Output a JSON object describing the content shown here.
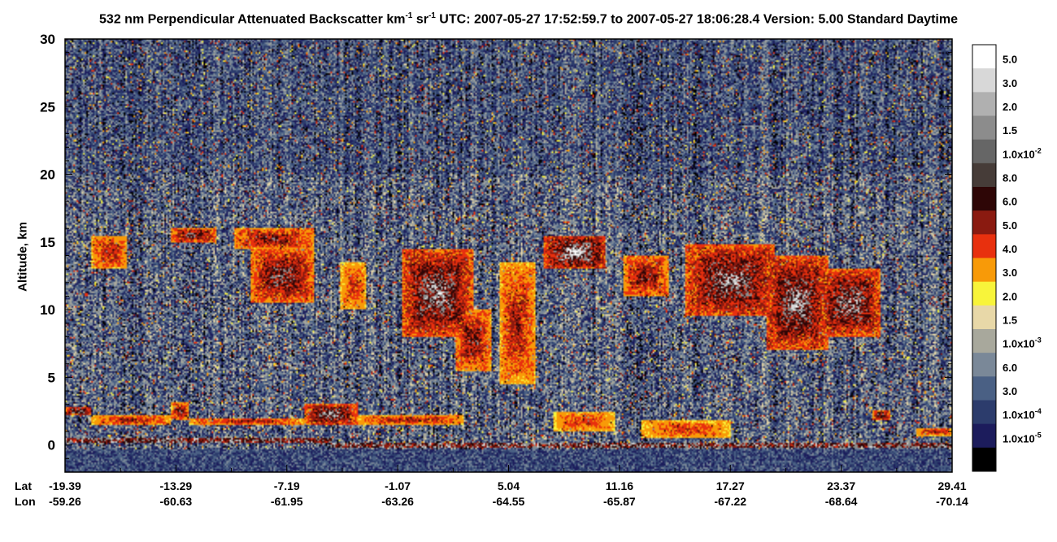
{
  "title": {
    "prefix": "532 nm Perpendicular Attenuated Backscatter km",
    "exp1": "-1",
    "mid": " sr",
    "exp2": "-1",
    "suffix": "  UTC: 2007-05-27 17:52:59.7 to 2007-05-27 18:06:28.4  Version: 5.00 Standard Daytime"
  },
  "chart_data": {
    "type": "heatmap",
    "ylabel": "Altitude, km",
    "ylim": [
      -2,
      30
    ],
    "yticks": [
      0,
      5,
      10,
      15,
      20,
      25,
      30
    ],
    "x_row_labels": [
      "Lat",
      "Lon"
    ],
    "xticks": [
      {
        "lat": "-19.39",
        "lon": "-59.26"
      },
      {
        "lat": "-13.29",
        "lon": "-60.63"
      },
      {
        "lat": "-7.19",
        "lon": "-61.95"
      },
      {
        "lat": "-1.07",
        "lon": "-63.26"
      },
      {
        "lat": "5.04",
        "lon": "-64.55"
      },
      {
        "lat": "11.16",
        "lon": "-65.87"
      },
      {
        "lat": "17.27",
        "lon": "-67.22"
      },
      {
        "lat": "23.37",
        "lon": "-68.64"
      },
      {
        "lat": "29.41",
        "lon": "-70.14"
      }
    ],
    "colorbar": [
      {
        "label": "5.0",
        "exp": "",
        "color": "#ffffff"
      },
      {
        "label": "3.0",
        "exp": "",
        "color": "#d8d8d8"
      },
      {
        "label": "2.0",
        "exp": "",
        "color": "#b0b0b0"
      },
      {
        "label": "1.5",
        "exp": "",
        "color": "#8c8c8c"
      },
      {
        "label": "1.0x10",
        "exp": "-2",
        "color": "#666666"
      },
      {
        "label": "8.0",
        "exp": "",
        "color": "#463c38"
      },
      {
        "label": "6.0",
        "exp": "",
        "color": "#2e0606"
      },
      {
        "label": "5.0",
        "exp": "",
        "color": "#8a1a10"
      },
      {
        "label": "4.0",
        "exp": "",
        "color": "#e8300e"
      },
      {
        "label": "3.0",
        "exp": "",
        "color": "#f89a08"
      },
      {
        "label": "2.0",
        "exp": "",
        "color": "#f8f43a"
      },
      {
        "label": "1.5",
        "exp": "",
        "color": "#e8d8a8"
      },
      {
        "label": "1.0x10",
        "exp": "-3",
        "color": "#a8a89c"
      },
      {
        "label": "6.0",
        "exp": "",
        "color": "#7a8898"
      },
      {
        "label": "3.0",
        "exp": "",
        "color": "#4a6084"
      },
      {
        "label": "1.0x10",
        "exp": "-4",
        "color": "#2c3c6c"
      },
      {
        "label": "1.0x10",
        "exp": "-5",
        "color": "#1c1c5c"
      },
      {
        "label": "",
        "exp": "",
        "color": "#000000"
      }
    ],
    "cloud_features": [
      {
        "x0": 0.03,
        "x1": 0.07,
        "alt_low": 13.0,
        "alt_high": 15.5,
        "intensity": 0.6
      },
      {
        "x0": 0.12,
        "x1": 0.17,
        "alt_low": 15.0,
        "alt_high": 16.0,
        "intensity": 0.8
      },
      {
        "x0": 0.19,
        "x1": 0.28,
        "alt_low": 14.5,
        "alt_high": 16.0,
        "intensity": 0.7
      },
      {
        "x0": 0.21,
        "x1": 0.28,
        "alt_low": 10.5,
        "alt_high": 14.5,
        "intensity": 0.8
      },
      {
        "x0": 0.31,
        "x1": 0.34,
        "alt_low": 10.0,
        "alt_high": 13.5,
        "intensity": 0.5
      },
      {
        "x0": 0.38,
        "x1": 0.46,
        "alt_low": 8.0,
        "alt_high": 14.5,
        "intensity": 0.9
      },
      {
        "x0": 0.44,
        "x1": 0.48,
        "alt_low": 5.5,
        "alt_high": 10.0,
        "intensity": 0.7
      },
      {
        "x0": 0.49,
        "x1": 0.53,
        "alt_low": 4.5,
        "alt_high": 13.5,
        "intensity": 0.6
      },
      {
        "x0": 0.54,
        "x1": 0.61,
        "alt_low": 13.0,
        "alt_high": 15.5,
        "intensity": 1.0
      },
      {
        "x0": 0.63,
        "x1": 0.68,
        "alt_low": 11.0,
        "alt_high": 14.0,
        "intensity": 0.7
      },
      {
        "x0": 0.7,
        "x1": 0.8,
        "alt_low": 9.5,
        "alt_high": 14.8,
        "intensity": 0.9
      },
      {
        "x0": 0.79,
        "x1": 0.86,
        "alt_low": 7.0,
        "alt_high": 14.0,
        "intensity": 0.9
      },
      {
        "x0": 0.85,
        "x1": 0.92,
        "alt_low": 8.0,
        "alt_high": 13.0,
        "intensity": 0.9
      }
    ],
    "low_features": [
      {
        "x0": 0.0,
        "x1": 0.03,
        "alt_low": 2.2,
        "alt_high": 2.8,
        "intensity": 0.9
      },
      {
        "x0": 0.03,
        "x1": 0.12,
        "alt_low": 1.5,
        "alt_high": 2.2,
        "intensity": 0.6
      },
      {
        "x0": 0.12,
        "x1": 0.14,
        "alt_low": 1.8,
        "alt_high": 3.2,
        "intensity": 0.7
      },
      {
        "x0": 0.14,
        "x1": 0.27,
        "alt_low": 1.5,
        "alt_high": 2.0,
        "intensity": 0.6
      },
      {
        "x0": 0.27,
        "x1": 0.33,
        "alt_low": 1.5,
        "alt_high": 3.0,
        "intensity": 0.9
      },
      {
        "x0": 0.33,
        "x1": 0.45,
        "alt_low": 1.5,
        "alt_high": 2.2,
        "intensity": 0.6
      },
      {
        "x0": 0.55,
        "x1": 0.62,
        "alt_low": 1.0,
        "alt_high": 2.5,
        "intensity": 0.5
      },
      {
        "x0": 0.65,
        "x1": 0.75,
        "alt_low": 0.5,
        "alt_high": 1.8,
        "intensity": 0.5
      },
      {
        "x0": 0.91,
        "x1": 0.93,
        "alt_low": 1.8,
        "alt_high": 2.6,
        "intensity": 0.8
      },
      {
        "x0": 0.96,
        "x1": 1.0,
        "alt_low": 0.7,
        "alt_high": 1.3,
        "intensity": 0.6
      }
    ],
    "surface": [
      {
        "x0": 0.0,
        "x1": 0.3,
        "alt": 0.3
      },
      {
        "x0": 0.3,
        "x1": 1.0,
        "alt": 0.0
      }
    ]
  }
}
